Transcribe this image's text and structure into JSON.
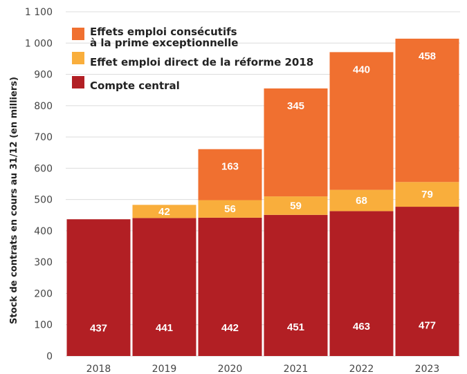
{
  "chart_data": {
    "type": "bar",
    "stacked": true,
    "categories": [
      "2018",
      "2019",
      "2020",
      "2021",
      "2022",
      "2023"
    ],
    "series": [
      {
        "name": "Compte central",
        "color": "#b21f24",
        "values": [
          437,
          441,
          442,
          451,
          463,
          477
        ]
      },
      {
        "name": "Effet emploi direct de la réforme 2018",
        "color": "#f9ae3c",
        "values": [
          null,
          42,
          56,
          59,
          68,
          79
        ]
      },
      {
        "name": [
          "Effets emploi consécutifs",
          "à la prime exceptionnelle"
        ],
        "color": "#f07030",
        "values": [
          null,
          null,
          163,
          345,
          440,
          458
        ]
      }
    ],
    "ylabel": "Stock de contrats en cours au 31/12 (en milliers)",
    "xlabel": "",
    "ylim": [
      0,
      1100
    ],
    "yticks": [
      0,
      100,
      200,
      300,
      400,
      500,
      600,
      700,
      800,
      900,
      1000,
      1100
    ],
    "ytick_labels": [
      "0",
      "100",
      "200",
      "300",
      "400",
      "500",
      "600",
      "700",
      "800",
      "900",
      "1 000",
      "1 100"
    ],
    "grid": true,
    "legend_position": "top-left"
  }
}
